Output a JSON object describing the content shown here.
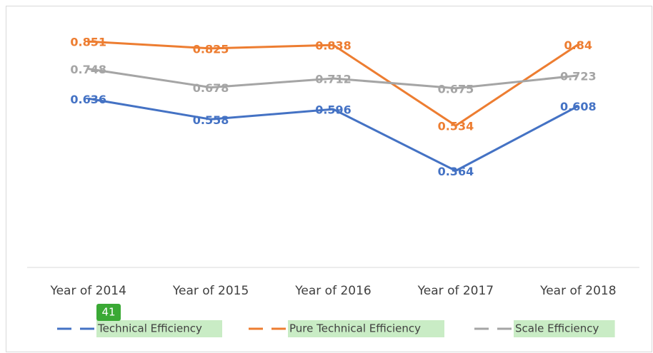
{
  "chart_data": {
    "type": "line",
    "categories": [
      "Year of 2014",
      "Year of 2015",
      "Year of 2016",
      "Year of 2017",
      "Year of 2018"
    ],
    "series": [
      {
        "name": "Technical Efficiency",
        "color": "#4472c4",
        "values": [
          0.636,
          0.558,
          0.596,
          0.364,
          0.608
        ]
      },
      {
        "name": "Pure Technical Efficiency",
        "color": "#ed7d31",
        "values": [
          0.851,
          0.825,
          0.838,
          0.534,
          0.84
        ]
      },
      {
        "name": "Scale Efficiency",
        "color": "#a5a5a5",
        "values": [
          0.748,
          0.678,
          0.712,
          0.675,
          0.723
        ]
      }
    ],
    "ylim": [
      0,
      0.9
    ],
    "legend": "bottom"
  },
  "ui": {
    "badge": "41"
  }
}
